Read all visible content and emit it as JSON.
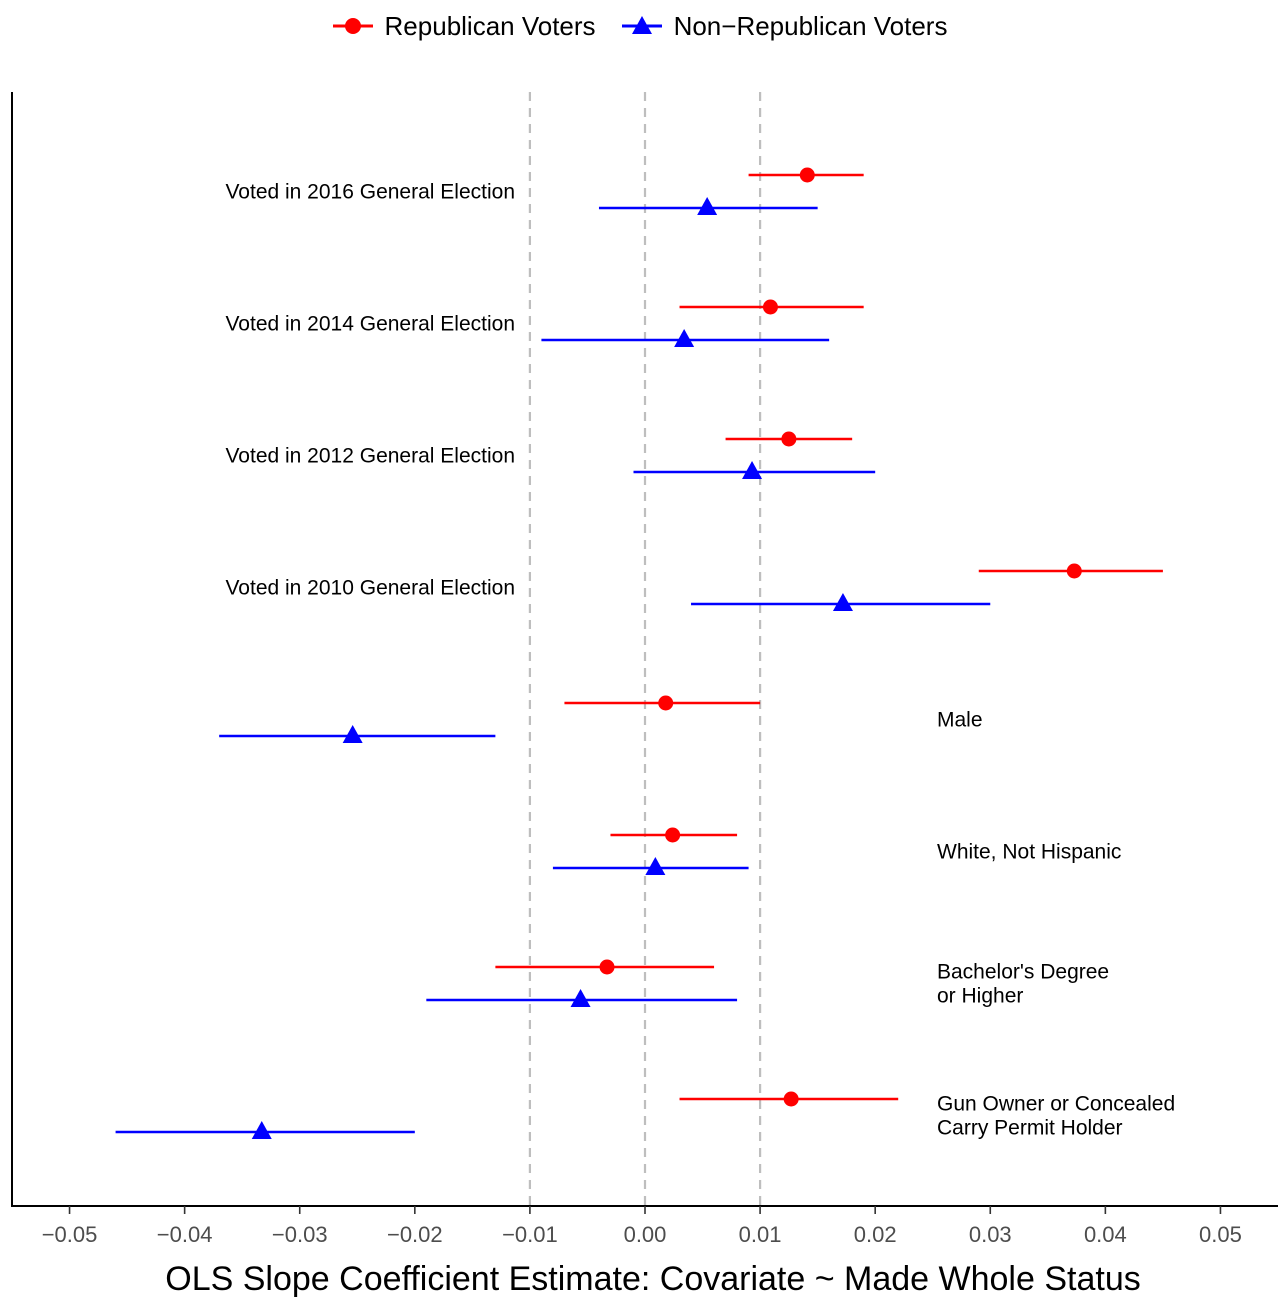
{
  "legend": [
    {
      "label": "Republican Voters",
      "color": "#FF0000",
      "shape": "circle"
    },
    {
      "label": "Non−Republican Voters",
      "color": "#0000FF",
      "shape": "triangle"
    }
  ],
  "chart_data": {
    "type": "dot-whisker",
    "xlabel": "OLS Slope Coefficient Estimate: Covariate ~ Made Whole Status",
    "xlim": [
      -0.055,
      0.055
    ],
    "xticks": [
      -0.05,
      -0.04,
      -0.03,
      -0.02,
      -0.01,
      0.0,
      0.01,
      0.02,
      0.03,
      0.04,
      0.05
    ],
    "xtick_labels": [
      "−0.05",
      "−0.04",
      "−0.03",
      "−0.02",
      "−0.01",
      "0.00",
      "0.01",
      "0.02",
      "0.03",
      "0.04",
      "0.05"
    ],
    "reference_lines": [
      -0.01,
      0.0,
      0.01
    ],
    "grid": false,
    "legend_position": "top",
    "categories": [
      {
        "label": [
          "Voted in 2016 General Election"
        ],
        "label_side": "left"
      },
      {
        "label": [
          "Voted in 2014 General Election"
        ],
        "label_side": "left"
      },
      {
        "label": [
          "Voted in 2012 General Election"
        ],
        "label_side": "left"
      },
      {
        "label": [
          "Voted in 2010 General Election"
        ],
        "label_side": "left"
      },
      {
        "label": [
          "Male"
        ],
        "label_side": "right"
      },
      {
        "label": [
          "White, Not Hispanic"
        ],
        "label_side": "right"
      },
      {
        "label": [
          "Bachelor's Degree",
          "or Higher"
        ],
        "label_side": "right"
      },
      {
        "label": [
          "Gun Owner or Concealed",
          "Carry Permit Holder"
        ],
        "label_side": "right"
      }
    ],
    "series": [
      {
        "name": "Republican Voters",
        "color": "#FF0000",
        "marker": "circle",
        "estimate": [
          0.0141,
          0.0109,
          0.0125,
          0.0373,
          0.0018,
          0.0024,
          -0.0033,
          0.0127
        ],
        "lower": [
          0.009,
          0.003,
          0.007,
          0.029,
          -0.007,
          -0.003,
          -0.013,
          0.003
        ],
        "upper": [
          0.019,
          0.019,
          0.018,
          0.045,
          0.01,
          0.008,
          0.006,
          0.022
        ]
      },
      {
        "name": "Non−Republican Voters",
        "color": "#0000FF",
        "marker": "triangle",
        "estimate": [
          0.0054,
          0.0034,
          0.0093,
          0.0172,
          -0.0254,
          0.0009,
          -0.0056,
          -0.0333
        ],
        "lower": [
          -0.004,
          -0.009,
          -0.001,
          0.004,
          -0.037,
          -0.008,
          -0.019,
          -0.046
        ],
        "upper": [
          0.015,
          0.016,
          0.02,
          0.03,
          -0.013,
          0.009,
          0.008,
          -0.02
        ]
      }
    ]
  }
}
